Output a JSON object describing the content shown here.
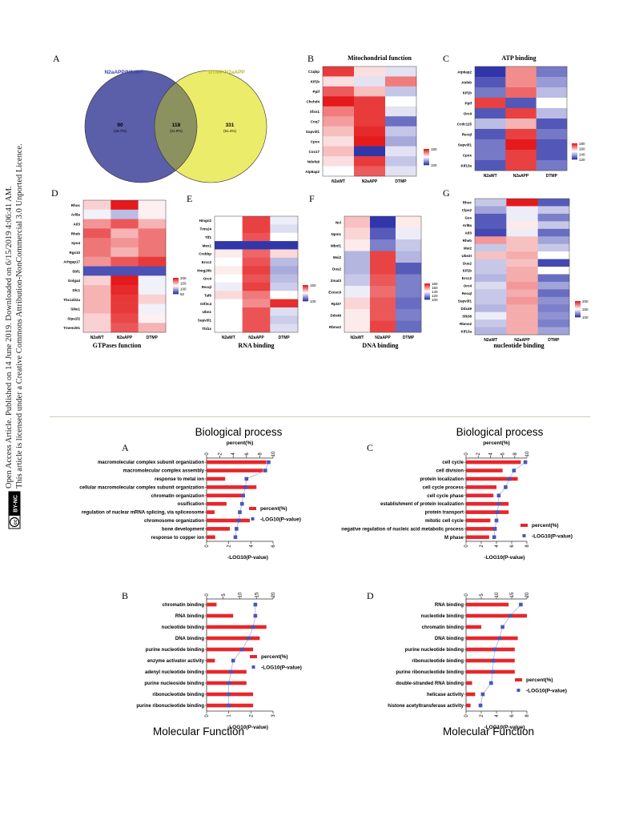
{
  "sidebar": {
    "line1": "Open Access Article. Published on 14 June 2019. Downloaded on 6/15/2019 4:06:41 AM.",
    "line2": "This article is licensed under a Creative Commons Attribution-NonCommercial 3.0 Unported Licence.",
    "badge_cc": "cc",
    "badge_text": "BY-NC"
  },
  "venn": {
    "panel": "A",
    "left_label": "N2aAPP/N2aWT",
    "right_label": "DTMP/N2aAPP",
    "left_count": "90",
    "left_pct": "(16.7%)",
    "mid_count": "118",
    "mid_pct": "(21.9%)",
    "right_count": "331",
    "right_pct": "(61.4%)",
    "colors": {
      "left": "#5b5ea8",
      "right": "#ecec6b",
      "overlap": "#8c9160"
    }
  },
  "heatmap_columns": [
    "N2aWT",
    "N2aAPP",
    "DTMP"
  ],
  "heatmaps": [
    {
      "panel": "B",
      "title": "Mitochondrial function",
      "title_pos": "top",
      "genes": [
        "C1qbp",
        "Kif1b",
        "Ppif",
        "Chchd4",
        "Sfxn1",
        "Coq7",
        "Supv3l1",
        "Cpox",
        "Cox17",
        "Ndufa9",
        "Atp6ap2"
      ],
      "values": [
        [
          190,
          140,
          120
        ],
        [
          140,
          120,
          170
        ],
        [
          180,
          150,
          110
        ],
        [
          200,
          190,
          130
        ],
        [
          170,
          190,
          120
        ],
        [
          160,
          190,
          80
        ],
        [
          150,
          195,
          110
        ],
        [
          140,
          200,
          100
        ],
        [
          150,
          60,
          120
        ],
        [
          140,
          190,
          110
        ],
        [
          130,
          180,
          120
        ]
      ],
      "legend_ticks": [
        "150",
        "100"
      ],
      "vmin": 60,
      "vmax": 200
    },
    {
      "panel": "C",
      "title": "ATP binding",
      "title_pos": "top",
      "genes": [
        "Atp6ap2",
        "Atdxb",
        "Kif1b",
        "Ppif",
        "Orc4",
        "Ccdc115",
        "Recql",
        "Supv3l1",
        "Cpox",
        "Kif13a"
      ],
      "values": [
        [
          120,
          165,
          130
        ],
        [
          125,
          165,
          135
        ],
        [
          130,
          170,
          140
        ],
        [
          175,
          125,
          150
        ],
        [
          125,
          175,
          140
        ],
        [
          140,
          160,
          125
        ],
        [
          125,
          175,
          130
        ],
        [
          130,
          180,
          125
        ],
        [
          130,
          175,
          125
        ],
        [
          125,
          175,
          130
        ]
      ],
      "legend_ticks": [
        "180",
        "160",
        "140",
        "120"
      ],
      "vmin": 120,
      "vmax": 180
    },
    {
      "panel": "D",
      "title": "GTPases function",
      "title_pos": "bottom",
      "genes": [
        "Rhoc",
        "Arl8a",
        "Atl3",
        "Rheb",
        "Xpo4",
        "Rgs10",
        "Arhgap17",
        "Sbf1",
        "Golga4",
        "Dlc1",
        "Tbc1d22a",
        "Sike1",
        "Sipa1l2",
        "Tmem201"
      ],
      "values": [
        [
          140,
          200,
          130
        ],
        [
          120,
          100,
          130
        ],
        [
          160,
          180,
          150
        ],
        [
          180,
          150,
          170
        ],
        [
          170,
          160,
          170
        ],
        [
          170,
          150,
          170
        ],
        [
          160,
          180,
          190
        ],
        [
          60,
          60,
          60
        ],
        [
          140,
          200,
          120
        ],
        [
          150,
          195,
          120
        ],
        [
          150,
          190,
          140
        ],
        [
          150,
          190,
          120
        ],
        [
          140,
          185,
          130
        ],
        [
          140,
          180,
          150
        ]
      ],
      "legend_ticks": [
        "200",
        "150",
        "100",
        "50"
      ],
      "vmin": 50,
      "vmax": 200
    },
    {
      "panel": "E",
      "title": "RNA binding",
      "title_pos": "bottom",
      "genes": [
        "Hmgn2",
        "Trim24",
        "Tlf1",
        "Mex1",
        "Crebbp",
        "Ercc2",
        "Hmg20b",
        "Orc4",
        "Recql",
        "Taf6",
        "Gtf3c4",
        "Ubn1",
        "Supv3l1",
        "Tbl1x"
      ],
      "values": [
        [
          140,
          190,
          135
        ],
        [
          140,
          190,
          130
        ],
        [
          140,
          185,
          140
        ],
        [
          80,
          80,
          80
        ],
        [
          145,
          180,
          150
        ],
        [
          140,
          185,
          120
        ],
        [
          145,
          190,
          115
        ],
        [
          140,
          185,
          120
        ],
        [
          135,
          190,
          125
        ],
        [
          150,
          175,
          140
        ],
        [
          140,
          170,
          195
        ],
        [
          140,
          185,
          130
        ],
        [
          140,
          185,
          125
        ],
        [
          140,
          185,
          130
        ]
      ],
      "legend_ticks": [
        "150",
        "100"
      ],
      "vmin": 80,
      "vmax": 200
    },
    {
      "panel": "F",
      "title": "DNA binding",
      "title_pos": "bottom",
      "genes": [
        "Ncl",
        "Npm1",
        "Mbnl1",
        "Msi2",
        "Dus2",
        "Zmat3",
        "Exosc9",
        "Rpl37",
        "Ddx49",
        "Rbms2"
      ],
      "values": [
        [
          150,
          80,
          140
        ],
        [
          145,
          90,
          130
        ],
        [
          140,
          100,
          120
        ],
        [
          115,
          180,
          115
        ],
        [
          115,
          180,
          90
        ],
        [
          120,
          175,
          100
        ],
        [
          130,
          170,
          100
        ],
        [
          145,
          175,
          95
        ],
        [
          140,
          175,
          100
        ],
        [
          140,
          180,
          95
        ]
      ],
      "legend_ticks": [
        "180",
        "160",
        "140",
        "120",
        "100"
      ],
      "vmin": 80,
      "vmax": 190
    },
    {
      "panel": "G",
      "title": "nucleotide binding",
      "title_pos": "bottom",
      "genes": [
        "Rhoc",
        "Clps2",
        "Gss",
        "Arl8a",
        "Atl3",
        "Rheb",
        "Msi2",
        "Ube2t",
        "Dus2",
        "Kif1b",
        "Ercc2",
        "Orc4",
        "Recql",
        "Supv3l1",
        "Ddx49",
        "Slk38",
        "Rbms2",
        "Kif13a"
      ],
      "values": [
        [
          130,
          200,
          100
        ],
        [
          120,
          140,
          130
        ],
        [
          100,
          140,
          110
        ],
        [
          100,
          150,
          130
        ],
        [
          95,
          140,
          105
        ],
        [
          170,
          160,
          120
        ],
        [
          130,
          160,
          130
        ],
        [
          160,
          165,
          145
        ],
        [
          130,
          160,
          95
        ],
        [
          130,
          165,
          145
        ],
        [
          125,
          165,
          105
        ],
        [
          135,
          170,
          120
        ],
        [
          130,
          165,
          105
        ],
        [
          130,
          170,
          115
        ],
        [
          125,
          165,
          110
        ],
        [
          140,
          165,
          115
        ],
        [
          130,
          165,
          110
        ],
        [
          125,
          165,
          120
        ]
      ],
      "legend_ticks": [
        "200",
        "150",
        "100"
      ],
      "vmin": 90,
      "vmax": 200
    }
  ],
  "chart_data": [
    {
      "type": "bar",
      "panel": "A",
      "title": "Biological process",
      "top_axis_label": "percent(%)",
      "bottom_axis_label": "-LOG10(P-value)",
      "categories": [
        "macromolecular complex subunit organization",
        "macromolecular complex assembly",
        "response to metal ion",
        "cellular macromolecular complex subunit organization",
        "chromatin organization",
        "ossification",
        "regulation of nuclear mRNA splicing, via spliceosome",
        "chromosome organization",
        "bone development",
        "response to copper ion"
      ],
      "top_ticks": [
        "0",
        "2",
        "4",
        "6",
        "8",
        "10"
      ],
      "top_max": 10,
      "bottom_ticks": [
        "0",
        "2",
        "4",
        "6"
      ],
      "bottom_max": 6,
      "series": [
        {
          "name": "percent(%)",
          "values": [
            9.0,
            8.5,
            2.8,
            7.5,
            5.5,
            3.0,
            1.2,
            6.5,
            3.5,
            1.3
          ]
        },
        {
          "name": "-LOG10(P-value)",
          "values": [
            5.6,
            5.3,
            3.6,
            3.5,
            3.3,
            3.2,
            3.0,
            2.9,
            2.7,
            2.6
          ]
        }
      ]
    },
    {
      "type": "bar",
      "panel": "C",
      "title": "Biological process",
      "top_axis_label": "percent(%)",
      "bottom_axis_label": "-LOG10(P-value)",
      "categories": [
        "cell cycle",
        "cell division",
        "protein localization",
        "cell cycle process",
        "cell cycle phase",
        "establishment of protein localization",
        "protein transport",
        "mitotic cell cycle",
        "negative regulation of  nucleic acid metabolic process",
        "M phase"
      ],
      "top_ticks": [
        "0",
        "2",
        "4",
        "6",
        "8",
        "10"
      ],
      "top_max": 10,
      "bottom_ticks": [
        "0",
        "2",
        "4",
        "6",
        "8"
      ],
      "bottom_max": 8,
      "series": [
        {
          "name": "percent(%)",
          "values": [
            9.0,
            6.0,
            8.5,
            5.0,
            4.5,
            7.0,
            7.0,
            4.0,
            5.0,
            3.8
          ]
        },
        {
          "name": "-LOG10(P-value)",
          "values": [
            7.8,
            6.3,
            5.7,
            5.2,
            4.3,
            4.3,
            4.1,
            4.0,
            3.8,
            3.7
          ]
        }
      ]
    },
    {
      "type": "bar",
      "panel": "B",
      "title": "Molecular Function",
      "top_axis_label": "",
      "bottom_axis_label": "-LOG10(P-value)",
      "categories": [
        "chromatin binding",
        "RNA binding",
        "nucleotide binding",
        "DNA binding",
        "purine nucleotide binding",
        "enzyme activator activity",
        "adenyl nucleotide binding",
        "purine nucleoside binding",
        "ribonucleotide binding",
        "purine ribonucleotide binding"
      ],
      "top_ticks": [
        "0",
        "5",
        "10",
        "15",
        "20"
      ],
      "top_max": 20,
      "bottom_ticks": [
        "0",
        "1",
        "2",
        "3"
      ],
      "bottom_max": 3,
      "series": [
        {
          "name": "percent(%)",
          "values": [
            3.0,
            8.0,
            18.0,
            16.0,
            14.0,
            2.5,
            12.0,
            12.0,
            14.0,
            14.0
          ]
        },
        {
          "name": "-LOG10(P-value)",
          "values": [
            2.2,
            2.2,
            2.1,
            1.9,
            1.6,
            1.2,
            1.1,
            1.0,
            1.0,
            1.0
          ]
        }
      ]
    },
    {
      "type": "bar",
      "panel": "D",
      "title": "Molecular Function",
      "top_axis_label": "",
      "bottom_axis_label": "-LOG10(P-value)",
      "categories": [
        "RNA binding",
        "nucleotide binding",
        "chromatin binding",
        "DNA binding",
        "purine nucleotide binding",
        "ribonucleotide binding",
        "purine ribonucleotide binding",
        "double-stranded RNA binding",
        "helicase activity",
        "histone acetyltransferase activity"
      ],
      "top_ticks": [
        "0",
        "5",
        "10",
        "15",
        "20"
      ],
      "top_max": 20,
      "bottom_ticks": [
        "0",
        "2",
        "4",
        "6",
        "8"
      ],
      "bottom_max": 8,
      "series": [
        {
          "name": "percent(%)",
          "values": [
            14.0,
            20.0,
            5.0,
            17.0,
            16.0,
            16.0,
            16.0,
            2.0,
            3.0,
            1.5
          ]
        },
        {
          "name": "-LOG10(P-value)",
          "values": [
            7.2,
            5.8,
            4.8,
            4.4,
            3.8,
            3.6,
            3.5,
            3.3,
            2.2,
            1.9
          ]
        }
      ]
    }
  ],
  "legend": {
    "bar": "percent(%)",
    "dot": "-LOG10(P-value)"
  },
  "colors": {
    "bar": "#e8262b",
    "dot": "#4a56b5",
    "line": "#9fa6d8",
    "axis": "#333333"
  }
}
